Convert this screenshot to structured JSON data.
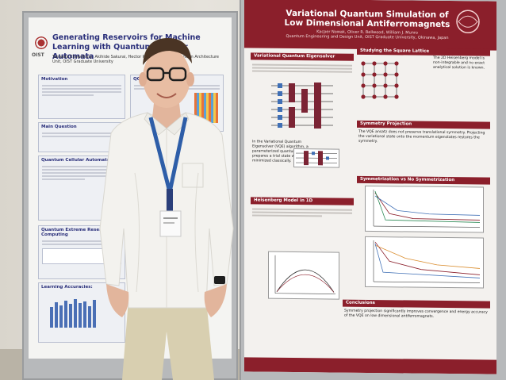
{
  "left_poster": {
    "title": "Generating Reservoirs for Machine Learning with Quantum Cellular Automata",
    "authors": "Tanjeela Chowdhury, Akihide Sakurai, Hector Pérez Cerullo ... Quantum Architecture Unit, OIST Graduate University",
    "logo_text": "OIST",
    "sections": {
      "motivation": "Motivation",
      "qca": "QCA Quantum",
      "main_question": "Main Question",
      "cellular_automata": "Quantum Cellular Automata",
      "extreme_reservoir": "Quantum Extreme Reservoir Computing",
      "learning_accuracies": "Learning Accuracies:"
    }
  },
  "right_poster": {
    "title": "Variational Quantum Simulation of Low Dimensional Antiferromagnets",
    "authors": "Kacper Nowak, Oliver R. Bellwood, William J. Munro",
    "affiliation": "Quantum Engineering and Design Unit, OIST Graduate University, Okinawa, Japan",
    "sections": {
      "vqe": "Variational Quantum Eigensolver",
      "square_lattice": "Studying the Square Lattice",
      "symmetry_projection": "Symmetry Projection",
      "heisenberg_1d": "Heisenberg Model in 1D",
      "symmetrization": "Symmetrization vs No Symmetrization",
      "conclusions": "Conclusions"
    },
    "heisenberg_2d_text": "The 2D Heisenberg model is non-integrable and no exact analytical solution is known.",
    "vqe_text": "In the Variational Quantum Eigensolver (VQE) algorithm, a parameterized quantum circuit prepares a trial state whose energy is minimized classically.",
    "symmetry_text": "The VQE ansatz does not preserve translational symmetry. Projecting the variational state onto the momentum eigenstates restores the symmetry.",
    "conclusions_text": "Symmetry projection significantly improves convergence and energy accuracy of the VQE on low dimensional antiferromagnets."
  }
}
